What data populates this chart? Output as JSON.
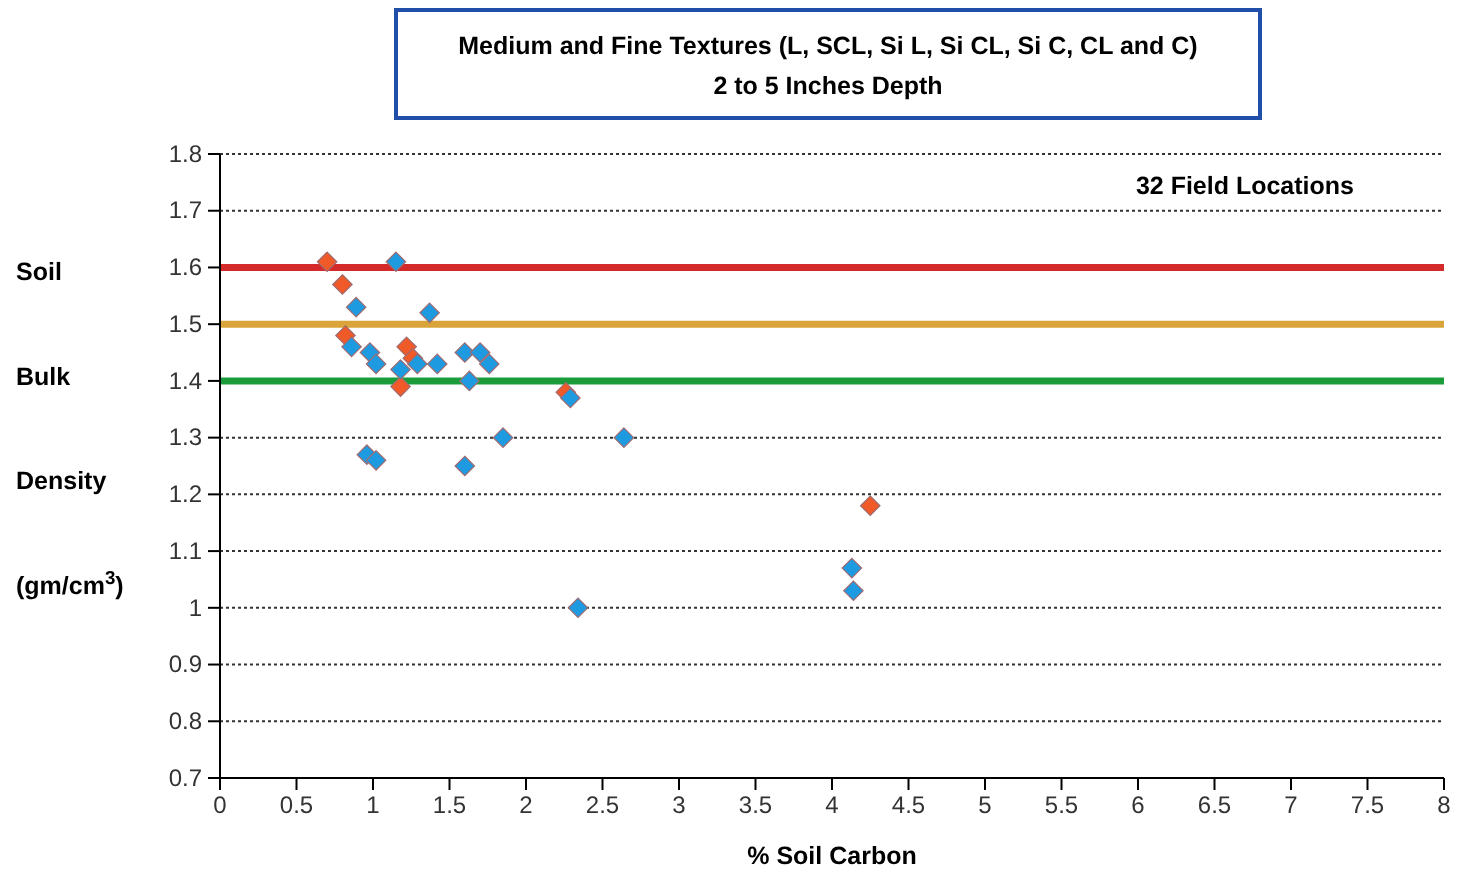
{
  "chart_data": {
    "type": "scatter",
    "title": "Medium and Fine Textures (L, SCL, Si L, Si CL, Si C, CL and C)",
    "subtitle": "2 to 5 Inches Depth",
    "xlabel": "% Soil Carbon",
    "ylabel": "Soil Bulk Density (gm/cm$^{3}$)",
    "annotations": [
      "32 Field Locations"
    ],
    "xlim": [
      0,
      8
    ],
    "xticks": [
      0,
      0.5,
      1,
      1.5,
      2,
      2.5,
      3,
      3.5,
      4,
      4.5,
      5,
      5.5,
      6,
      6.5,
      7,
      7.5,
      8
    ],
    "ylim": [
      0.7,
      1.8
    ],
    "yticks": [
      0.7,
      0.8,
      0.9,
      1,
      1.1,
      1.2,
      1.3,
      1.4,
      1.5,
      1.6,
      1.7,
      1.8
    ],
    "grid": "y",
    "marker": "diamond",
    "ref_lines": [
      {
        "axis": "y",
        "value": 1.6,
        "color": "#d42a2a"
      },
      {
        "axis": "y",
        "value": 1.5,
        "color": "#d9a53a"
      },
      {
        "axis": "y",
        "value": 1.4,
        "color": "#1a9c3a"
      }
    ],
    "series": [
      {
        "color": "#f05a28",
        "x": [
          0.7,
          0.8,
          0.82,
          1.22,
          1.18,
          1.26,
          2.26,
          4.25
        ],
        "values": [
          1.61,
          1.57,
          1.48,
          1.46,
          1.39,
          1.44,
          1.38,
          1.18
        ]
      },
      {
        "color": "#1e9be0",
        "x": [
          1.15,
          0.89,
          1.37,
          0.86,
          0.98,
          1.02,
          1.18,
          1.29,
          1.42,
          1.6,
          1.7,
          1.63,
          1.76,
          2.29,
          1.85,
          2.64,
          0.96,
          1.02,
          1.6,
          2.34,
          4.13,
          4.14
        ],
        "values": [
          1.61,
          1.53,
          1.52,
          1.46,
          1.45,
          1.43,
          1.42,
          1.43,
          1.43,
          1.45,
          1.45,
          1.4,
          1.43,
          1.37,
          1.3,
          1.3,
          1.27,
          1.26,
          1.25,
          1.0,
          1.07,
          1.03
        ]
      }
    ]
  }
}
